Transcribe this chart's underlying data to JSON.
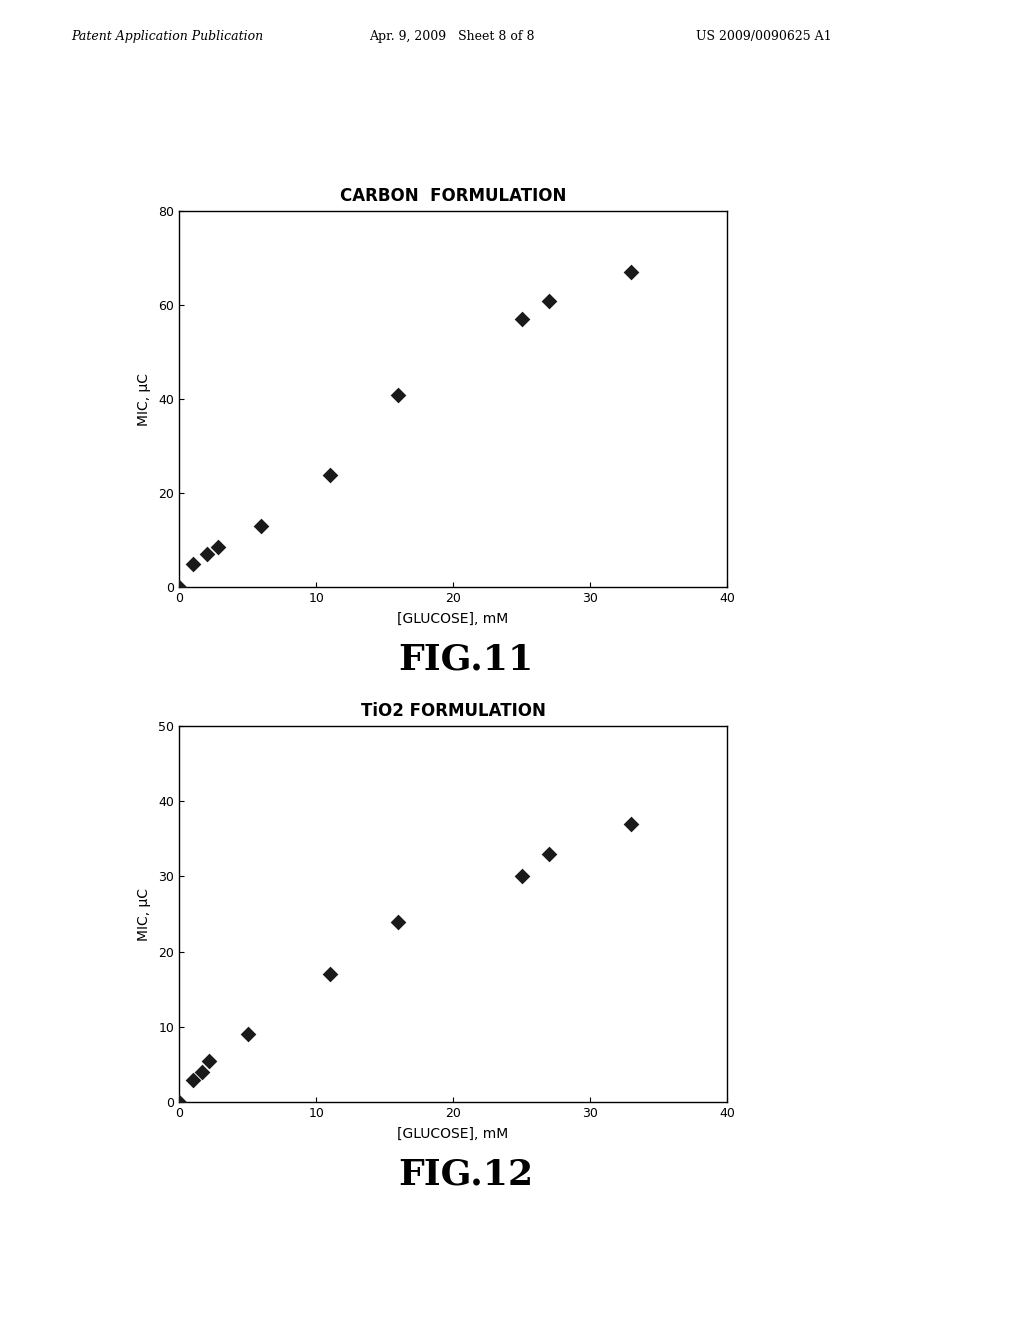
{
  "fig11": {
    "title": "CARBON  FORMULATION",
    "xlabel": "[GLUCOSE], mM",
    "ylabel": "MIC, μC",
    "x": [
      0,
      1.0,
      2.0,
      2.8,
      6.0,
      11.0,
      16.0,
      25.0,
      27.0,
      33.0
    ],
    "y": [
      0,
      5.0,
      7.0,
      8.5,
      13.0,
      24.0,
      41.0,
      57.0,
      61.0,
      67.0
    ],
    "xlim": [
      0,
      40
    ],
    "ylim": [
      0,
      80
    ],
    "xticks": [
      0,
      10,
      20,
      30,
      40
    ],
    "yticks": [
      0,
      20,
      40,
      60,
      80
    ],
    "fig_label": "FIG.11"
  },
  "fig12": {
    "title": "TiO2 FORMULATION",
    "xlabel": "[GLUCOSE], mM",
    "ylabel": "MIC, μC",
    "x": [
      0,
      1.0,
      1.7,
      2.2,
      5.0,
      11.0,
      16.0,
      25.0,
      27.0,
      33.0
    ],
    "y": [
      0,
      3.0,
      4.0,
      5.5,
      9.0,
      17.0,
      24.0,
      30.0,
      33.0,
      37.0
    ],
    "xlim": [
      0,
      40
    ],
    "ylim": [
      0,
      50
    ],
    "xticks": [
      0,
      10,
      20,
      30,
      40
    ],
    "yticks": [
      0,
      10,
      20,
      30,
      40,
      50
    ],
    "fig_label": "FIG.12"
  },
  "marker": "D",
  "marker_color": "#1a1a1a",
  "marker_size": 8,
  "background_color": "#ffffff",
  "header_left": "Patent Application Publication",
  "header_mid": "Apr. 9, 2009   Sheet 8 of 8",
  "header_right": "US 2009/0090625 A1",
  "title_fontsize": 12,
  "label_fontsize": 10,
  "tick_fontsize": 9,
  "fig_label_fontsize": 26
}
